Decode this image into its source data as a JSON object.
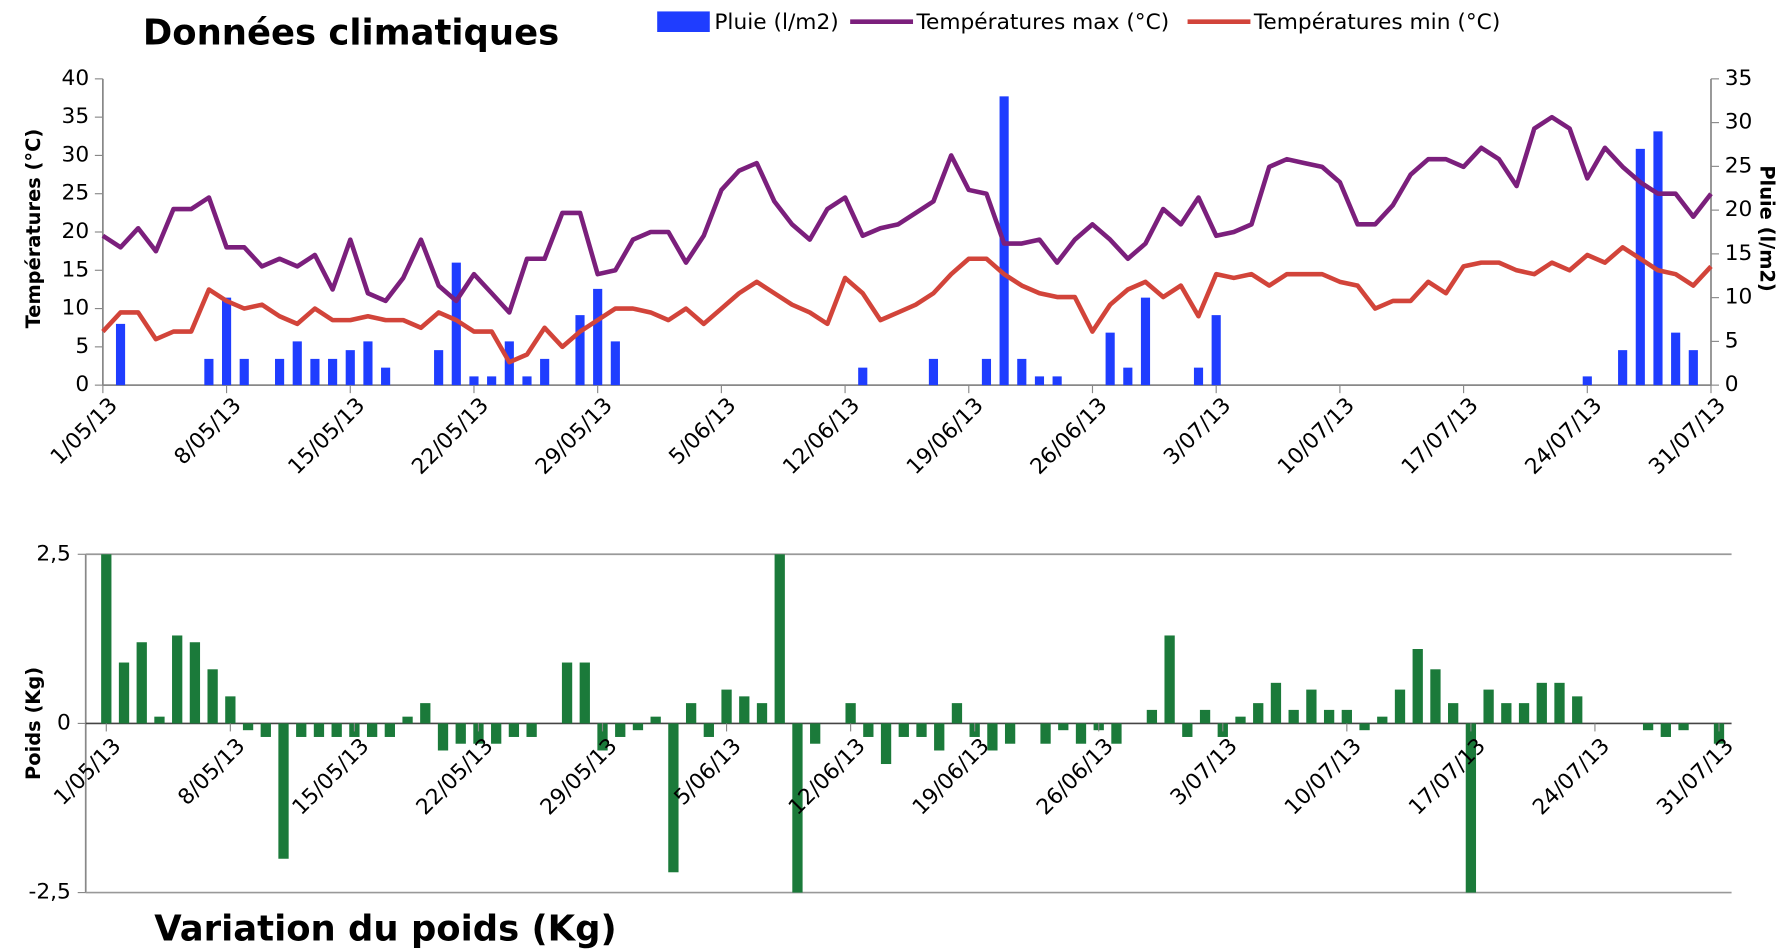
{
  "chart_data": [
    {
      "type": "bar_line",
      "title": "Données climatiques",
      "categories": [
        "1/05/13",
        null,
        null,
        null,
        null,
        null,
        null,
        "8/05/13",
        null,
        null,
        null,
        null,
        null,
        null,
        "15/05/13",
        null,
        null,
        null,
        null,
        null,
        null,
        "22/05/13",
        null,
        null,
        null,
        null,
        null,
        null,
        "29/05/13",
        null,
        null,
        null,
        null,
        null,
        null,
        "5/06/13",
        null,
        null,
        null,
        null,
        null,
        null,
        "12/06/13",
        null,
        null,
        null,
        null,
        null,
        null,
        "19/06/13",
        null,
        null,
        null,
        null,
        null,
        null,
        "26/06/13",
        null,
        null,
        null,
        null,
        null,
        null,
        "3/07/13",
        null,
        null,
        null,
        null,
        null,
        null,
        "10/07/13",
        null,
        null,
        null,
        null,
        null,
        null,
        "17/07/13",
        null,
        null,
        null,
        null,
        null,
        null,
        "24/07/13",
        null,
        null,
        null,
        null,
        null,
        null,
        "31/07/13"
      ],
      "series": [
        {
          "name": "Pluie (l/m2)",
          "kind": "bar",
          "axis": "y2",
          "color": "#1f3dff",
          "values": [
            0,
            7,
            0,
            0,
            0,
            0,
            3,
            10,
            3,
            0,
            3,
            5,
            3,
            3,
            4,
            5,
            2,
            0,
            0,
            4,
            14,
            1,
            1,
            5,
            1,
            3,
            0,
            8,
            11,
            5,
            0,
            0,
            0,
            0,
            0,
            0,
            0,
            0,
            0,
            0,
            0,
            0,
            0,
            2,
            0,
            0,
            0,
            3,
            0,
            0,
            3,
            33,
            3,
            1,
            1,
            0,
            0,
            6,
            2,
            10,
            0,
            0,
            2,
            8,
            0,
            0,
            0,
            0,
            0,
            0,
            0,
            0,
            0,
            0,
            0,
            0,
            0,
            0,
            0,
            0,
            0,
            0,
            0,
            0,
            1,
            0,
            4,
            27,
            29,
            6,
            4,
            0
          ]
        },
        {
          "name": "Températures max (°C)",
          "kind": "line",
          "color": "#7b1f7c",
          "values": [
            19.5,
            18,
            20.5,
            17.5,
            23,
            23,
            24.5,
            18,
            18,
            15.5,
            16.5,
            15.5,
            17,
            12.5,
            19,
            12,
            11,
            14,
            19,
            13,
            11,
            14.5,
            12,
            9.5,
            16.5,
            16.5,
            22.5,
            22.5,
            14.5,
            15,
            19,
            20,
            20,
            16,
            19.5,
            25.5,
            28,
            29,
            24,
            21,
            19,
            23,
            24.5,
            19.5,
            20.5,
            21,
            22.5,
            24,
            30,
            25.5,
            25,
            18.5,
            18.5,
            19,
            16,
            19,
            21,
            19,
            16.5,
            18.5,
            23,
            21,
            24.5,
            19.5,
            20,
            21,
            28.5,
            29.5,
            29,
            28.5,
            26.5,
            21,
            21,
            23.5,
            27.5,
            29.5,
            29.5,
            28.5,
            31,
            29.5,
            26,
            33.5,
            35,
            33.5,
            27,
            31,
            28.5,
            26.5,
            25,
            25,
            22,
            25
          ]
        },
        {
          "name": "Températures min (°C)",
          "kind": "line",
          "color": "#d2443a",
          "values": [
            7,
            9.5,
            9.5,
            6,
            7,
            7,
            12.5,
            11,
            10,
            10.5,
            9,
            8,
            10,
            8.5,
            8.5,
            9,
            8.5,
            8.5,
            7.5,
            9.5,
            8.5,
            7,
            7,
            3,
            4,
            7.5,
            5,
            7,
            8.5,
            10,
            10,
            9.5,
            8.5,
            10,
            8,
            10,
            12,
            13.5,
            12,
            10.5,
            9.5,
            8,
            14,
            12,
            8.5,
            9.5,
            10.5,
            12,
            14.5,
            16.5,
            16.5,
            14.5,
            13,
            12,
            11.5,
            11.5,
            7,
            10.5,
            12.5,
            13.5,
            11.5,
            13,
            9,
            14.5,
            14,
            14.5,
            13,
            14.5,
            14.5,
            14.5,
            13.5,
            13,
            10,
            11,
            11,
            13.5,
            12,
            15.5,
            16,
            16,
            15,
            14.5,
            16,
            15,
            17,
            16,
            18,
            16.5,
            15,
            14.5,
            13,
            15.5
          ]
        }
      ],
      "ylabel": "Températures (°C)",
      "ylim": [
        0,
        40
      ],
      "yticks": [
        0,
        5,
        10,
        15,
        20,
        25,
        30,
        35,
        40
      ],
      "y2label": "Pluie (l/m2)",
      "y2lim": [
        0,
        35
      ],
      "y2ticks": [
        0,
        5,
        10,
        15,
        20,
        25,
        30,
        35
      ]
    },
    {
      "type": "bar",
      "title": "Variation du poids (Kg)",
      "color": "#1b7a3a",
      "categories": [
        "1/05/13",
        null,
        null,
        null,
        null,
        null,
        null,
        "8/05/13",
        null,
        null,
        null,
        null,
        null,
        null,
        "15/05/13",
        null,
        null,
        null,
        null,
        null,
        null,
        "22/05/13",
        null,
        null,
        null,
        null,
        null,
        null,
        "29/05/13",
        null,
        null,
        null,
        null,
        null,
        null,
        "5/06/13",
        null,
        null,
        null,
        null,
        null,
        null,
        "12/06/13",
        null,
        null,
        null,
        null,
        null,
        null,
        "19/06/13",
        null,
        null,
        null,
        null,
        null,
        null,
        "26/06/13",
        null,
        null,
        null,
        null,
        null,
        null,
        "3/07/13",
        null,
        null,
        null,
        null,
        null,
        null,
        "10/07/13",
        null,
        null,
        null,
        null,
        null,
        null,
        "17/07/13",
        null,
        null,
        null,
        null,
        null,
        null,
        "24/07/13",
        null,
        null,
        null,
        null,
        null,
        null,
        "31/07/13"
      ],
      "values": [
        2.5,
        0.9,
        1.2,
        0.1,
        1.3,
        1.2,
        0.8,
        0.4,
        -0.1,
        -0.2,
        -2.0,
        -0.2,
        -0.2,
        -0.2,
        -0.2,
        -0.2,
        -0.2,
        0.1,
        0.3,
        -0.4,
        -0.3,
        -0.3,
        -0.3,
        -0.2,
        -0.2,
        0,
        0.9,
        0.9,
        -0.4,
        -0.2,
        -0.1,
        0.1,
        -2.2,
        0.3,
        -0.2,
        0.5,
        0.4,
        0.3,
        2.5,
        -2.5,
        -0.3,
        0,
        0.3,
        -0.2,
        -0.6,
        -0.2,
        -0.2,
        -0.4,
        0.3,
        -0.2,
        -0.4,
        -0.3,
        0,
        -0.3,
        -0.1,
        -0.3,
        -0.1,
        -0.3,
        0,
        0.2,
        1.3,
        -0.2,
        0.2,
        -0.2,
        0.1,
        0.3,
        0.6,
        0.2,
        0.5,
        0.2,
        0.2,
        -0.1,
        0.1,
        0.5,
        1.1,
        0.8,
        0.3,
        -2.5,
        0.5,
        0.3,
        0.3,
        0.6,
        0.6,
        0.4,
        0,
        0,
        0,
        -0.1,
        -0.2,
        -0.1,
        0,
        -0.3
      ],
      "ylabel": "Poids (Kg)",
      "ylim": [
        -2.5,
        2.5
      ],
      "yticks": [
        {
          "value": -2.5,
          "label": "-2,5"
        },
        0,
        {
          "value": 2.5,
          "label": "2,5"
        }
      ],
      "grid": true
    }
  ]
}
